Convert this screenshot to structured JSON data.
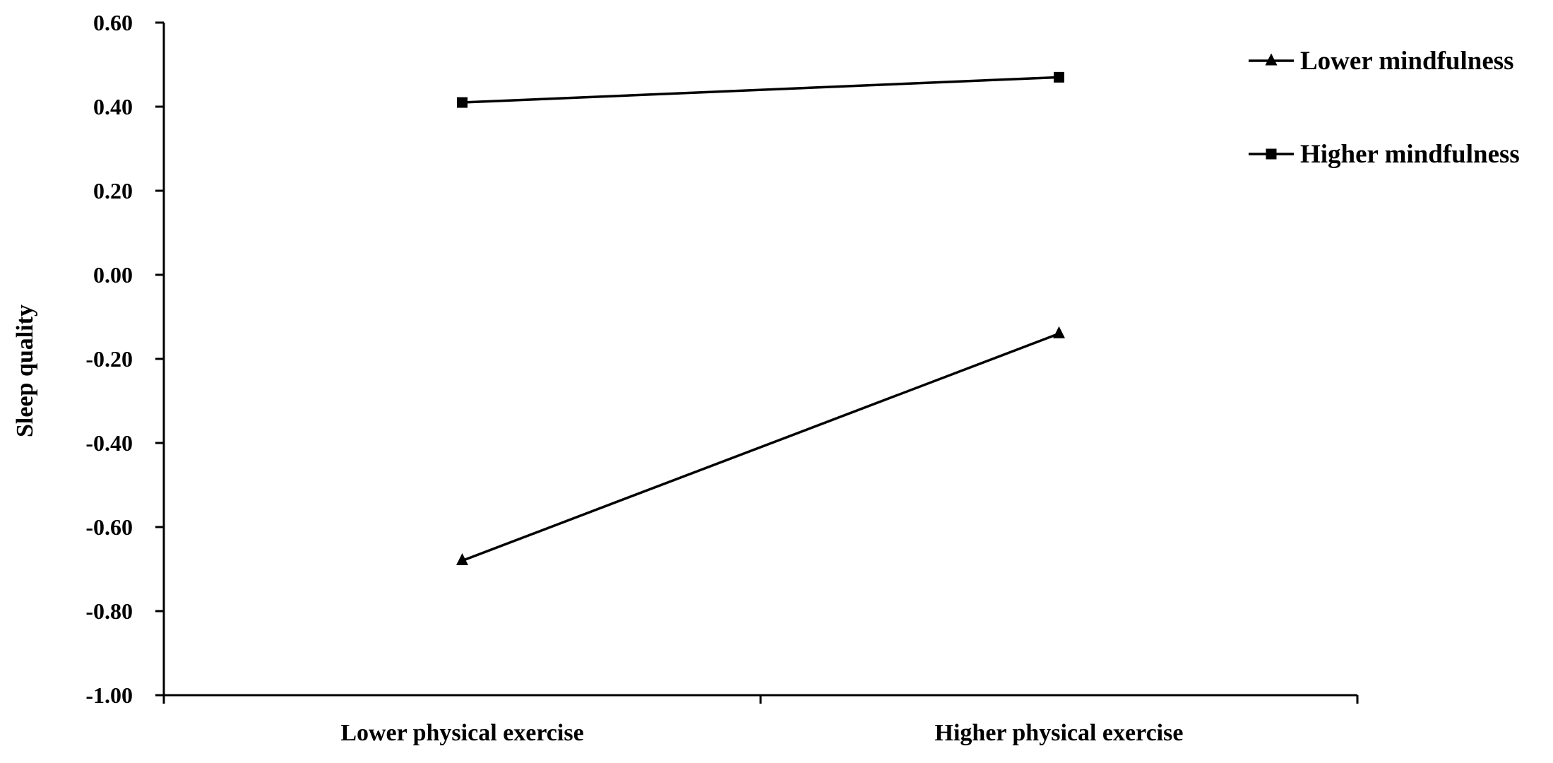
{
  "chart_data": {
    "type": "line",
    "title": "",
    "xlabel": "",
    "ylabel": "Sleep quality",
    "categories": [
      "Lower physical exercise",
      "Higher physical exercise"
    ],
    "ylim": [
      -1.0,
      0.6
    ],
    "yticks": [
      0.6,
      0.4,
      0.2,
      0.0,
      -0.2,
      -0.4,
      -0.6,
      -0.8,
      -1.0
    ],
    "ytick_labels": [
      "0.60",
      "0.40",
      "0.20",
      "0.00",
      "-0.20",
      "-0.40",
      "-0.60",
      "-0.80",
      "-1.00"
    ],
    "grid": false,
    "legend_position": "top-right",
    "series": [
      {
        "name": "Lower mindfulness",
        "marker": "triangle",
        "values": [
          -0.68,
          -0.14
        ]
      },
      {
        "name": "Higher mindfulness",
        "marker": "square",
        "values": [
          0.41,
          0.47
        ]
      }
    ],
    "colors": {
      "line": "#000000",
      "background": "#ffffff"
    }
  }
}
